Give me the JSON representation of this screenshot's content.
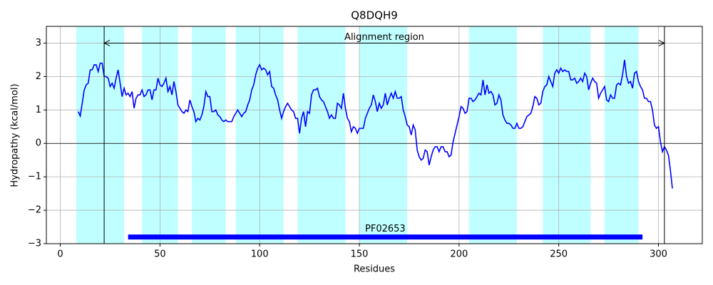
{
  "chart_data": {
    "type": "line",
    "title": "Q8DQH9",
    "xlabel": "Residues",
    "ylabel": "Hydropathy (kcal/mol)",
    "xlim": [
      -7,
      322
    ],
    "ylim": [
      -3,
      3.5
    ],
    "xticks": [
      0,
      50,
      100,
      150,
      200,
      250,
      300
    ],
    "yticks": [
      {
        "value": -3,
        "label": "−3"
      },
      {
        "value": -2,
        "label": "−2"
      },
      {
        "value": -1,
        "label": "−1"
      },
      0,
      1,
      2,
      3
    ],
    "grid": true,
    "zero_line": 0,
    "highlight_color": "#c0ffff",
    "highlight_regions": [
      [
        8,
        32
      ],
      [
        41,
        59
      ],
      [
        66,
        83
      ],
      [
        88,
        112
      ],
      [
        119,
        143
      ],
      [
        150,
        174
      ],
      [
        205,
        229
      ],
      [
        242,
        266
      ],
      [
        273,
        290
      ]
    ],
    "alignment_region": {
      "label": "Alignment region",
      "start": 22,
      "end": 303,
      "y": 3
    },
    "domain": {
      "label": "PF02653",
      "start": 34,
      "end": 292,
      "y": -2.8,
      "color": "#0000ff"
    },
    "x": [
      9,
      10,
      11,
      12,
      13,
      14,
      15,
      16,
      17,
      18,
      19,
      20,
      21,
      22,
      23,
      24,
      25,
      26,
      27,
      28,
      29,
      30,
      31,
      32,
      33,
      34,
      35,
      36,
      37,
      38,
      39,
      40,
      41,
      42,
      43,
      44,
      45,
      46,
      47,
      48,
      49,
      50,
      51,
      52,
      53,
      54,
      55,
      56,
      57,
      58,
      59,
      60,
      61,
      62,
      63,
      64,
      65,
      66,
      67,
      68,
      69,
      70,
      71,
      72,
      73,
      74,
      75,
      76,
      77,
      78,
      79,
      80,
      81,
      82,
      83,
      84,
      85,
      86,
      87,
      88,
      89,
      90,
      91,
      92,
      93,
      94,
      95,
      96,
      97,
      98,
      99,
      100,
      101,
      102,
      103,
      104,
      105,
      106,
      107,
      108,
      109,
      110,
      111,
      112,
      113,
      114,
      115,
      116,
      117,
      118,
      119,
      120,
      121,
      122,
      123,
      124,
      125,
      126,
      127,
      128,
      129,
      130,
      131,
      132,
      133,
      134,
      135,
      136,
      137,
      138,
      139,
      140,
      141,
      142,
      143,
      144,
      145,
      146,
      147,
      148,
      149,
      150,
      151,
      152,
      153,
      154,
      155,
      156,
      157,
      158,
      159,
      160,
      161,
      162,
      163,
      164,
      165,
      166,
      167,
      168,
      169,
      170,
      171,
      172,
      173,
      174,
      175,
      176,
      177,
      178,
      179,
      180,
      181,
      182,
      183,
      184,
      185,
      186,
      187,
      188,
      189,
      190,
      191,
      192,
      193,
      194,
      195,
      196,
      197,
      198,
      199,
      200,
      201,
      202,
      203,
      204,
      205,
      206,
      207,
      208,
      209,
      210,
      211,
      212,
      213,
      214,
      215,
      216,
      217,
      218,
      219,
      220,
      221,
      222,
      223,
      224,
      225,
      226,
      227,
      228,
      229,
      230,
      231,
      232,
      233,
      234,
      235,
      236,
      237,
      238,
      239,
      240,
      241,
      242,
      243,
      244,
      245,
      246,
      247,
      248,
      249,
      250,
      251,
      252,
      253,
      254,
      255,
      256,
      257,
      258,
      259,
      260,
      261,
      262,
      263,
      264,
      265,
      266,
      267,
      268,
      269,
      270,
      271,
      272,
      273,
      274,
      275,
      276,
      277,
      278,
      279,
      280,
      281,
      282,
      283,
      284,
      285,
      286,
      287,
      288,
      289,
      290,
      291,
      292,
      293,
      294,
      295,
      296,
      297,
      298,
      299,
      300,
      301,
      302,
      303,
      304,
      305,
      306,
      307
    ],
    "series": [
      {
        "color": "#0000ff",
        "values": [
          0.95,
          0.82,
          1.2,
          1.6,
          1.75,
          1.8,
          2.2,
          2.2,
          2.35,
          2.35,
          2.15,
          2.4,
          2.4,
          2.0,
          2.0,
          1.95,
          1.7,
          1.8,
          1.65,
          1.95,
          2.2,
          1.8,
          1.4,
          1.65,
          1.45,
          1.5,
          1.4,
          1.55,
          1.05,
          1.35,
          1.45,
          1.45,
          1.6,
          1.4,
          1.45,
          1.6,
          1.6,
          1.3,
          1.6,
          1.6,
          1.95,
          1.75,
          1.7,
          1.8,
          1.95,
          1.55,
          1.7,
          1.45,
          1.85,
          1.55,
          1.15,
          1.05,
          0.95,
          0.9,
          1.0,
          0.95,
          1.3,
          1.1,
          0.95,
          0.65,
          0.75,
          0.7,
          0.85,
          1.1,
          1.55,
          1.4,
          1.4,
          0.95,
          0.95,
          1.0,
          0.85,
          0.8,
          0.7,
          0.65,
          0.7,
          0.65,
          0.65,
          0.65,
          0.8,
          0.9,
          1.0,
          0.9,
          0.8,
          0.9,
          0.95,
          1.15,
          1.3,
          1.6,
          1.75,
          2.05,
          2.25,
          2.35,
          2.2,
          2.25,
          2.2,
          2.05,
          2.15,
          1.7,
          1.65,
          1.45,
          1.3,
          1.0,
          0.75,
          0.95,
          1.1,
          1.2,
          1.1,
          1.0,
          0.95,
          0.75,
          0.75,
          0.3,
          0.75,
          0.95,
          0.5,
          0.95,
          0.9,
          1.45,
          1.6,
          1.6,
          1.65,
          1.4,
          1.3,
          1.25,
          1.1,
          0.95,
          0.75,
          0.85,
          0.75,
          0.75,
          1.2,
          1.15,
          1.05,
          1.5,
          1.05,
          0.75,
          0.65,
          0.35,
          0.5,
          0.45,
          0.3,
          0.45,
          0.45,
          0.45,
          0.75,
          0.9,
          1.05,
          1.15,
          1.45,
          1.25,
          0.95,
          1.2,
          1.05,
          1.15,
          1.5,
          1.15,
          1.35,
          1.5,
          1.35,
          1.55,
          1.35,
          1.35,
          1.4,
          1.0,
          0.8,
          0.55,
          0.5,
          0.25,
          0.55,
          0.4,
          -0.2,
          -0.4,
          -0.5,
          -0.45,
          -0.2,
          -0.25,
          -0.65,
          -0.4,
          -0.2,
          -0.1,
          -0.1,
          -0.25,
          -0.1,
          -0.1,
          -0.25,
          -0.25,
          -0.4,
          -0.35,
          0.05,
          0.3,
          0.55,
          0.8,
          1.1,
          1.05,
          0.9,
          0.95,
          1.35,
          1.35,
          1.25,
          1.3,
          1.4,
          1.5,
          1.45,
          1.9,
          1.45,
          1.75,
          1.5,
          1.55,
          1.45,
          1.15,
          1.2,
          1.45,
          1.3,
          0.85,
          0.7,
          0.6,
          0.6,
          0.55,
          0.45,
          0.45,
          0.6,
          0.45,
          0.45,
          0.5,
          0.65,
          0.8,
          0.85,
          0.9,
          1.1,
          1.4,
          1.35,
          1.15,
          1.2,
          1.55,
          1.7,
          1.75,
          2.0,
          1.85,
          1.7,
          2.1,
          2.2,
          2.1,
          2.25,
          2.15,
          2.2,
          2.15,
          2.15,
          1.9,
          1.9,
          1.95,
          1.8,
          1.85,
          1.95,
          1.85,
          2.1,
          2.0,
          1.6,
          1.8,
          1.95,
          1.85,
          1.8,
          1.35,
          1.5,
          1.6,
          1.7,
          1.3,
          1.25,
          1.45,
          1.35,
          1.35,
          1.75,
          1.8,
          1.75,
          2.05,
          2.5,
          2.0,
          1.8,
          1.85,
          1.65,
          2.1,
          2.15,
          1.85,
          1.7,
          1.6,
          1.35,
          1.35,
          1.25,
          1.25,
          1.0,
          0.55,
          0.45,
          0.5,
          0.05,
          -0.25,
          -0.1,
          -0.2,
          -0.35,
          -0.8,
          -1.35
        ]
      }
    ]
  }
}
